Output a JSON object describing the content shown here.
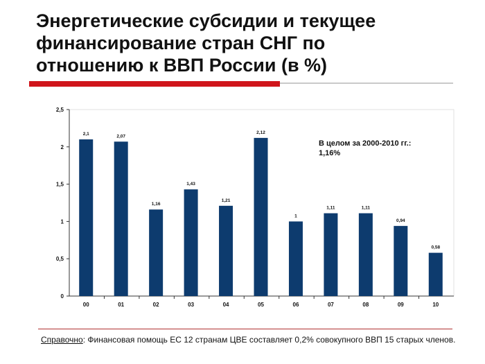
{
  "slide": {
    "title_lines": [
      "Энергетические субсидии и текущее",
      "финансирование стран СНГ по",
      "отношению к ВВП России (в %)"
    ]
  },
  "annotation": {
    "line1": "В целом за 2000-2010 гг.:",
    "line2": "1,16%"
  },
  "footnote": {
    "label": "Справочно",
    "text": ": Финансовая помощь ЕС 12 странам ЦВЕ составляет 0,2% совокупного ВВП 15 старых членов."
  },
  "chart_data": {
    "type": "bar",
    "categories": [
      "00",
      "01",
      "02",
      "03",
      "04",
      "05",
      "06",
      "07",
      "08",
      "09",
      "10"
    ],
    "values": [
      2.1,
      2.07,
      1.16,
      1.43,
      1.21,
      2.12,
      1,
      1.11,
      1.11,
      0.94,
      0.58
    ],
    "value_labels": [
      "2,1",
      "2,07",
      "1,16",
      "1,43",
      "1,21",
      "2,12",
      "1",
      "1,11",
      "1,11",
      "0,94",
      "0,58"
    ],
    "yticks": [
      "0",
      "0,5",
      "1",
      "1,5",
      "2",
      "2,5"
    ],
    "ytick_values": [
      0,
      0.5,
      1,
      1.5,
      2,
      2.5
    ],
    "ylim": [
      0,
      2.5
    ],
    "bar_color": "#0d3b6e",
    "grid": false,
    "legend": "none"
  }
}
